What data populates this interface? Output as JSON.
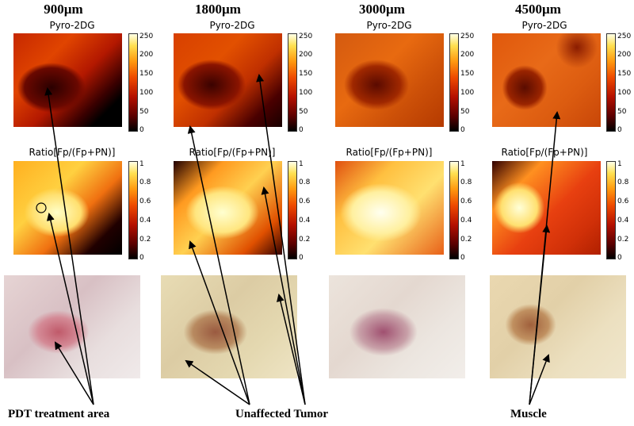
{
  "columns": [
    {
      "title": "900µm"
    },
    {
      "title": "1800µm"
    },
    {
      "title": "3000µm"
    },
    {
      "title": "4500µm"
    }
  ],
  "row_titles": {
    "pyro": "Pyro-2DG",
    "ratio": "Ratio[Fp/(Fp+PN)]"
  },
  "colorbars": {
    "pyro_ticks": [
      "250",
      "200",
      "150",
      "100",
      "50",
      "0"
    ],
    "ratio_ticks": [
      "1",
      "0.8",
      "0.6",
      "0.4",
      "0.2",
      "0"
    ]
  },
  "labels": {
    "pdt": "PDT treatment area",
    "tumor": "Unaffected Tumor",
    "muscle": "Muscle"
  }
}
